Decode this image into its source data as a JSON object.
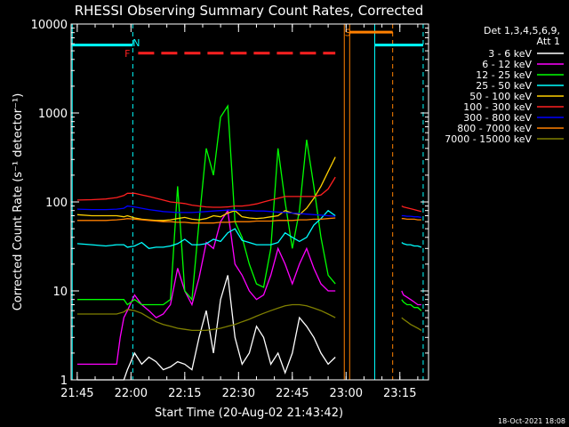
{
  "chart_data": {
    "type": "line",
    "title": "RHESSI Observing Summary Count Rates, Corrected",
    "xlabel": "Start Time (20-Aug-02 21:43:42)",
    "ylabel": "Corrected Count Rate (s⁻¹ detector⁻¹)",
    "y_scale": "log",
    "ylim": [
      1,
      10000
    ],
    "xlim_minutes": [
      -1.7,
      98
    ],
    "x_ticks": [
      {
        "m": 0,
        "label": "21:45"
      },
      {
        "m": 15,
        "label": "22:00"
      },
      {
        "m": 30,
        "label": "22:15"
      },
      {
        "m": 45,
        "label": "22:30"
      },
      {
        "m": 60,
        "label": "22:45"
      },
      {
        "m": 75,
        "label": "23:00"
      },
      {
        "m": 90,
        "label": "23:15"
      }
    ],
    "y_ticks": [
      {
        "v": 1,
        "label": "1"
      },
      {
        "v": 10,
        "label": "10"
      },
      {
        "v": 100,
        "label": "100"
      },
      {
        "v": 1000,
        "label": "1000"
      },
      {
        "v": 10000,
        "label": "10000"
      }
    ],
    "legend_title": [
      "Det 1,3,4,5,6,9,",
      "Att 1"
    ],
    "legend_position": "right",
    "series": [
      {
        "name": "3 - 6 keV",
        "color": "#ffffff",
        "x": [
          0,
          4,
          8,
          11,
          13,
          14,
          16,
          18,
          20,
          22,
          24,
          26,
          28,
          30,
          32,
          34,
          36,
          38,
          40,
          42,
          44,
          46,
          48,
          50,
          52,
          54,
          56,
          58,
          60,
          62,
          64,
          66,
          68,
          70,
          72
        ],
        "y": [
          1,
          1,
          1,
          1,
          1,
          1.3,
          2,
          1.5,
          1.8,
          1.6,
          1.3,
          1.4,
          1.6,
          1.5,
          1.3,
          3,
          6,
          2,
          8,
          15,
          3,
          1.5,
          2,
          4,
          3,
          1.5,
          2,
          1.2,
          2,
          5,
          4,
          3,
          2,
          1.5,
          1.8
        ]
      },
      {
        "name": "6 - 12 keV",
        "color": "#ff00ff",
        "x": [
          0,
          4,
          8,
          11,
          12,
          13,
          14,
          16,
          18,
          20,
          22,
          24,
          26,
          28,
          30,
          32,
          34,
          36,
          38,
          40,
          42,
          44,
          46,
          48,
          50,
          52,
          54,
          56,
          58,
          60,
          62,
          64,
          66,
          68,
          70,
          72
        ],
        "y": [
          1.5,
          1.5,
          1.5,
          1.5,
          3,
          5,
          6,
          9,
          7,
          6,
          5,
          5.5,
          7,
          18,
          10,
          7,
          14,
          35,
          30,
          60,
          80,
          20,
          15,
          10,
          8,
          9,
          15,
          30,
          20,
          12,
          20,
          30,
          18,
          12,
          10,
          10
        ]
      },
      {
        "name": "12 - 25 keV",
        "color": "#00ff00",
        "x": [
          0,
          4,
          8,
          11,
          12,
          13,
          14,
          16,
          18,
          20,
          22,
          24,
          26,
          28,
          30,
          32,
          34,
          36,
          38,
          40,
          42,
          44,
          46,
          48,
          50,
          52,
          54,
          56,
          58,
          60,
          62,
          64,
          66,
          68,
          70,
          72
        ],
        "y": [
          8,
          8,
          8,
          8,
          8,
          8,
          7,
          8,
          7,
          7,
          7,
          7,
          8,
          150,
          10,
          8,
          60,
          400,
          200,
          900,
          1200,
          60,
          40,
          20,
          12,
          11,
          30,
          400,
          100,
          30,
          80,
          500,
          150,
          40,
          15,
          12
        ]
      },
      {
        "name": "25 - 50 keV",
        "color": "#00ffff",
        "x": [
          0,
          4,
          8,
          11,
          13,
          14,
          16,
          18,
          20,
          22,
          24,
          26,
          28,
          30,
          32,
          34,
          36,
          38,
          40,
          42,
          44,
          46,
          48,
          50,
          52,
          54,
          56,
          58,
          60,
          62,
          64,
          66,
          68,
          70,
          72
        ],
        "y": [
          34,
          33,
          32,
          33,
          33,
          31,
          32,
          35,
          30,
          31,
          31,
          32,
          34,
          38,
          33,
          33,
          34,
          38,
          36,
          45,
          50,
          37,
          35,
          33,
          33,
          33,
          35,
          45,
          40,
          36,
          40,
          55,
          65,
          80,
          70
        ]
      },
      {
        "name": "50 - 100 keV",
        "color": "#ffd000",
        "x": [
          0,
          4,
          8,
          11,
          13,
          14,
          16,
          18,
          20,
          22,
          24,
          26,
          28,
          30,
          32,
          34,
          36,
          38,
          40,
          42,
          44,
          46,
          48,
          50,
          52,
          54,
          56,
          58,
          60,
          62,
          64,
          66,
          68,
          70,
          72
        ],
        "y": [
          72,
          70,
          70,
          70,
          68,
          70,
          66,
          64,
          63,
          62,
          62,
          63,
          65,
          67,
          64,
          63,
          65,
          70,
          68,
          75,
          80,
          68,
          66,
          65,
          66,
          68,
          70,
          80,
          75,
          72,
          85,
          110,
          150,
          220,
          320
        ]
      },
      {
        "name": "100 - 300 keV",
        "color": "#ff2020",
        "x": [
          0,
          4,
          8,
          11,
          13,
          14,
          16,
          18,
          20,
          22,
          24,
          26,
          28,
          30,
          32,
          34,
          36,
          38,
          40,
          42,
          44,
          46,
          48,
          50,
          52,
          54,
          56,
          58,
          60,
          62,
          64,
          66,
          68,
          70,
          72
        ],
        "y": [
          105,
          106,
          108,
          112,
          118,
          125,
          125,
          120,
          115,
          110,
          105,
          100,
          98,
          96,
          92,
          90,
          88,
          87,
          87,
          88,
          90,
          90,
          92,
          95,
          100,
          105,
          110,
          115,
          115,
          115,
          115,
          115,
          120,
          140,
          190
        ]
      },
      {
        "name": "300 - 800 keV",
        "color": "#0000ff",
        "x": [
          0,
          4,
          8,
          11,
          13,
          14,
          16,
          18,
          20,
          22,
          24,
          26,
          28,
          30,
          32,
          34,
          36,
          38,
          40,
          42,
          44,
          46,
          48,
          50,
          52,
          54,
          56,
          58,
          60,
          62,
          64,
          66,
          68,
          70,
          72
        ],
        "y": [
          83,
          82,
          82,
          83,
          85,
          90,
          88,
          85,
          82,
          80,
          78,
          77,
          76,
          76,
          76,
          77,
          78,
          79,
          80,
          81,
          81,
          80,
          80,
          79,
          79,
          78,
          77,
          76,
          75,
          74,
          73,
          72,
          71,
          70,
          69
        ]
      },
      {
        "name": "800 - 7000 keV",
        "color": "#ff8000",
        "x": [
          0,
          4,
          8,
          11,
          13,
          14,
          16,
          18,
          20,
          22,
          24,
          26,
          28,
          30,
          32,
          34,
          36,
          38,
          40,
          42,
          44,
          46,
          48,
          50,
          52,
          54,
          56,
          58,
          60,
          62,
          64,
          66,
          68,
          70,
          72
        ],
        "y": [
          62,
          62,
          62,
          63,
          64,
          65,
          64,
          63,
          62,
          61,
          60,
          60,
          59,
          59,
          58,
          58,
          58,
          58,
          59,
          59,
          60,
          60,
          60,
          61,
          61,
          61,
          62,
          62,
          62,
          63,
          63,
          64,
          64,
          65,
          66
        ]
      },
      {
        "name": "7000 - 15000 keV",
        "color": "#808000",
        "x": [
          0,
          4,
          8,
          11,
          13,
          14,
          16,
          18,
          20,
          22,
          24,
          26,
          28,
          30,
          32,
          34,
          36,
          38,
          40,
          42,
          44,
          46,
          48,
          50,
          52,
          54,
          56,
          58,
          60,
          62,
          64,
          66,
          68,
          70,
          72
        ],
        "y": [
          5.5,
          5.5,
          5.5,
          5.5,
          5.8,
          6.2,
          6,
          5.6,
          5,
          4.5,
          4.2,
          4,
          3.8,
          3.7,
          3.6,
          3.6,
          3.6,
          3.7,
          3.8,
          4,
          4.2,
          4.5,
          4.8,
          5.2,
          5.6,
          6,
          6.4,
          6.8,
          7,
          7,
          6.8,
          6.4,
          6,
          5.5,
          5
        ]
      },
      {
        "name": "",
        "color": "#ff2020",
        "x": [
          90.5,
          91,
          92,
          93,
          94,
          95,
          96
        ],
        "y": [
          90,
          88,
          86,
          84,
          82,
          80,
          78
        ]
      },
      {
        "name": "",
        "color": "#0000ff",
        "x": [
          90.5,
          91,
          92,
          93,
          94,
          95,
          96
        ],
        "y": [
          70,
          70,
          69,
          69,
          68,
          68,
          67
        ]
      },
      {
        "name": "",
        "color": "#ff8000",
        "x": [
          90.5,
          91,
          92,
          93,
          94,
          95,
          96
        ],
        "y": [
          65,
          65,
          64,
          64,
          64,
          63,
          63
        ]
      },
      {
        "name": "",
        "color": "#00ff00",
        "x": [
          90.5,
          91,
          92,
          93,
          94,
          95,
          96
        ],
        "y": [
          8,
          7.5,
          7,
          7,
          6.5,
          6.5,
          6
        ]
      },
      {
        "name": "",
        "color": "#00ffff",
        "x": [
          90.5,
          91,
          92,
          93,
          94,
          95,
          96
        ],
        "y": [
          35,
          34,
          33,
          33,
          32,
          32,
          31
        ]
      },
      {
        "name": "",
        "color": "#808000",
        "x": [
          90.5,
          91,
          92,
          93,
          94,
          95,
          96
        ],
        "y": [
          5,
          4.8,
          4.5,
          4.2,
          4,
          3.8,
          3.6
        ]
      },
      {
        "name": "",
        "color": "#ff00ff",
        "x": [
          90.5,
          91,
          92,
          93,
          94,
          95,
          96
        ],
        "y": [
          10,
          9,
          8.5,
          8,
          7.5,
          7,
          7
        ]
      }
    ],
    "annotations": [
      {
        "text": "F",
        "m": 14,
        "v": 4700,
        "color": "#ff2020"
      },
      {
        "text": "N",
        "m": 16.5,
        "v": 6200,
        "color": "#00ffff"
      },
      {
        "text": "S",
        "m": 75.5,
        "v": 8000,
        "color": "#ff8000"
      }
    ],
    "vertical_markers": [
      {
        "m": 15.5,
        "color": "#00ffff",
        "style": "dashed"
      },
      {
        "m": 74.5,
        "color": "#ff8000",
        "style": "solid"
      },
      {
        "m": 76,
        "color": "#ff8000",
        "style": "solid"
      },
      {
        "m": 83,
        "color": "#00ffff",
        "style": "solid"
      },
      {
        "m": 88,
        "color": "#ff8000",
        "style": "dashed"
      },
      {
        "m": 96.5,
        "color": "#00ffff",
        "style": "dashed"
      },
      {
        "m": -1.4,
        "color": "#00ffff",
        "style": "solid"
      }
    ],
    "state_bars": [
      {
        "x0": -1.5,
        "x1": 15.5,
        "v": 5800,
        "color": "#00ffff",
        "dash": false
      },
      {
        "x0": 83,
        "x1": 96.5,
        "v": 5800,
        "color": "#00ffff",
        "dash": false
      },
      {
        "x0": 76,
        "x1": 88,
        "v": 8100,
        "color": "#ff8000",
        "dash": false
      },
      {
        "x0": 17,
        "x1": 72,
        "v": 4700,
        "color": "#ff2020",
        "dash": true
      }
    ]
  },
  "footer": {
    "date_stamp": "18-Oct-2021 18:08"
  }
}
